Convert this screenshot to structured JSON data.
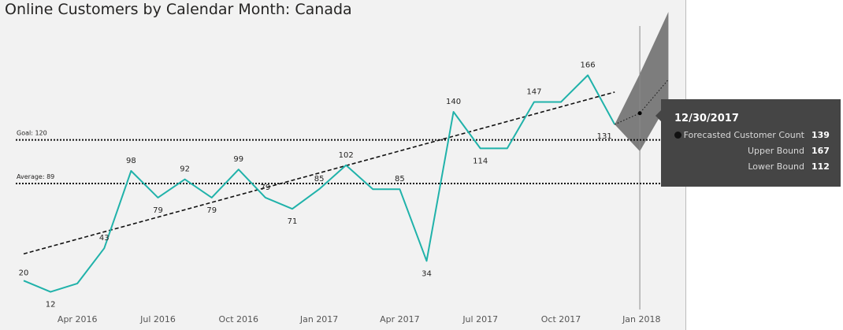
{
  "title": "Online Customers by Calendar Month: Canada",
  "colors": {
    "line": "#20b2aa",
    "trend": "#111111",
    "refline": "#111111",
    "forecast_band": "#707070",
    "tooltip_bg": "#454545"
  },
  "reference_lines": [
    {
      "label": "Goal: 120",
      "value": 120
    },
    {
      "label": "Average: 89",
      "value": 89
    }
  ],
  "chart_data": {
    "type": "line",
    "title": "Online Customers by Calendar Month: Canada",
    "x": [
      "2016-02",
      "2016-03",
      "2016-04",
      "2016-05",
      "2016-06",
      "2016-07",
      "2016-08",
      "2016-09",
      "2016-10",
      "2016-11",
      "2016-12",
      "2017-01",
      "2017-02",
      "2017-03",
      "2017-04",
      "2017-05",
      "2017-06",
      "2017-07",
      "2017-08",
      "2017-09",
      "2017-10",
      "2017-11",
      "2017-12"
    ],
    "series": [
      {
        "values": [
          20,
          12,
          18,
          43,
          98,
          79,
          92,
          79,
          99,
          79,
          71,
          85,
          102,
          85,
          85,
          34,
          140,
          114,
          114,
          147,
          147,
          166,
          131
        ]
      }
    ],
    "data_labels": [
      {
        "x": "2016-02",
        "text": "20"
      },
      {
        "x": "2016-03",
        "text": "12"
      },
      {
        "x": "2016-05",
        "text": "43"
      },
      {
        "x": "2016-06",
        "text": "98"
      },
      {
        "x": "2016-07",
        "text": "79"
      },
      {
        "x": "2016-08",
        "text": "92"
      },
      {
        "x": "2016-09",
        "text": "79"
      },
      {
        "x": "2016-10",
        "text": "99"
      },
      {
        "x": "2016-11",
        "text": "79"
      },
      {
        "x": "2016-12",
        "text": "71"
      },
      {
        "x": "2017-01",
        "text": "85"
      },
      {
        "x": "2017-02",
        "text": "102"
      },
      {
        "x": "2017-04",
        "text": "85"
      },
      {
        "x": "2017-05",
        "text": "34"
      },
      {
        "x": "2017-06",
        "text": "140"
      },
      {
        "x": "2017-07",
        "text": "114"
      },
      {
        "x": "2017-09",
        "text": "147"
      },
      {
        "x": "2017-11",
        "text": "166"
      },
      {
        "x": "2017-12",
        "text": "131"
      }
    ],
    "trend_line": {
      "start": {
        "x": "2016-02",
        "y": 39
      },
      "end": {
        "x": "2017-12",
        "y": 154
      }
    },
    "forecast": {
      "points": [
        {
          "x": "2017-12-01",
          "y": 131,
          "lower": 131,
          "upper": 131
        },
        {
          "x": "2017-12-30",
          "y": 139,
          "lower": 112,
          "upper": 167
        },
        {
          "x": "2018-02-01",
          "y": 163,
          "lower": 147,
          "upper": 211
        }
      ]
    },
    "x_tick_labels": [
      "Apr 2016",
      "Jul 2016",
      "Oct 2016",
      "Jan 2017",
      "Apr 2017",
      "Jul 2017",
      "Oct 2017",
      "Jan 2018"
    ],
    "ylim": [
      0,
      215
    ],
    "grid": false,
    "xlabel": "",
    "ylabel": ""
  },
  "tooltip": {
    "date": "12/30/2017",
    "rows": [
      {
        "label": "Forecasted Customer Count",
        "value": "139"
      },
      {
        "label": "Upper Bound",
        "value": "167"
      },
      {
        "label": "Lower Bound",
        "value": "112"
      }
    ]
  }
}
